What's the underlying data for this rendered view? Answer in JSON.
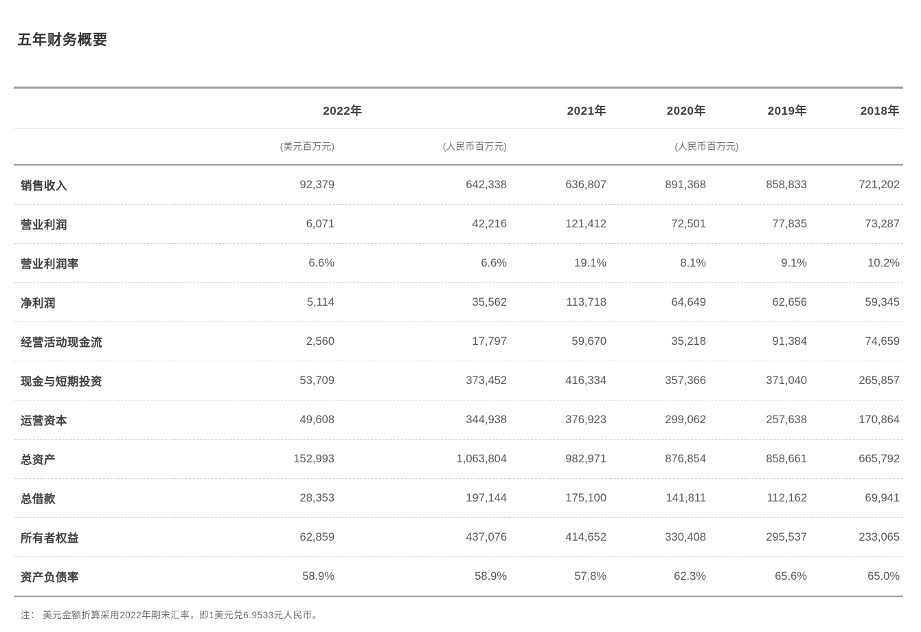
{
  "page": {
    "title": "五年财务概要"
  },
  "table": {
    "header": {
      "year_2022": "2022年",
      "year_2021": "2021年",
      "year_2020": "2020年",
      "year_2019": "2019年",
      "year_2018": "2018年",
      "unit_usd": "(美元百万元)",
      "unit_rmb_2022": "(人民币百万元)",
      "unit_rmb_group": "(人民币百万元)"
    },
    "rows": [
      {
        "label": "销售收入",
        "values": [
          "92,379",
          "642,338",
          "636,807",
          "891,368",
          "858,833",
          "721,202"
        ]
      },
      {
        "label": "营业利润",
        "values": [
          "6,071",
          "42,216",
          "121,412",
          "72,501",
          "77,835",
          "73,287"
        ]
      },
      {
        "label": "营业利润率",
        "values": [
          "6.6%",
          "6.6%",
          "19.1%",
          "8.1%",
          "9.1%",
          "10.2%"
        ]
      },
      {
        "label": "净利润",
        "values": [
          "5,114",
          "35,562",
          "113,718",
          "64,649",
          "62,656",
          "59,345"
        ]
      },
      {
        "label": "经营活动现金流",
        "values": [
          "2,560",
          "17,797",
          "59,670",
          "35,218",
          "91,384",
          "74,659"
        ]
      },
      {
        "label": "现金与短期投资",
        "values": [
          "53,709",
          "373,452",
          "416,334",
          "357,366",
          "371,040",
          "265,857"
        ]
      },
      {
        "label": "运营资本",
        "values": [
          "49,608",
          "344,938",
          "376,923",
          "299,062",
          "257,638",
          "170,864"
        ]
      },
      {
        "label": "总资产",
        "values": [
          "152,993",
          "1,063,804",
          "982,971",
          "876,854",
          "858,661",
          "665,792"
        ]
      },
      {
        "label": "总借款",
        "values": [
          "28,353",
          "197,144",
          "175,100",
          "141,811",
          "112,162",
          "69,941"
        ]
      },
      {
        "label": "所有者权益",
        "values": [
          "62,859",
          "437,076",
          "414,652",
          "330,408",
          "295,537",
          "233,065"
        ]
      },
      {
        "label": "资产负债率",
        "values": [
          "58.9%",
          "58.9%",
          "57.8%",
          "62.3%",
          "65.6%",
          "65.0%"
        ]
      }
    ],
    "note": "注： 美元金额折算采用2022年期末汇率，即1美元兑6.9533元人民币。"
  }
}
